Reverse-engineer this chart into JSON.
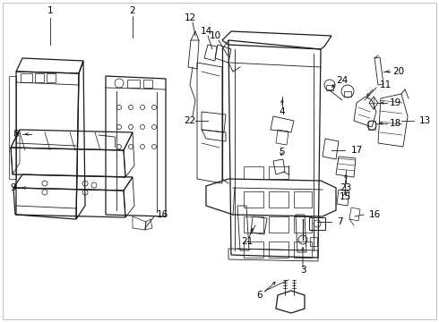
{
  "bg_color": "#ffffff",
  "fig_width": 4.9,
  "fig_height": 3.6,
  "dpi": 100,
  "line_color": "#1a1a1a",
  "text_color": "#000000",
  "font_size": 7.5,
  "border": true
}
